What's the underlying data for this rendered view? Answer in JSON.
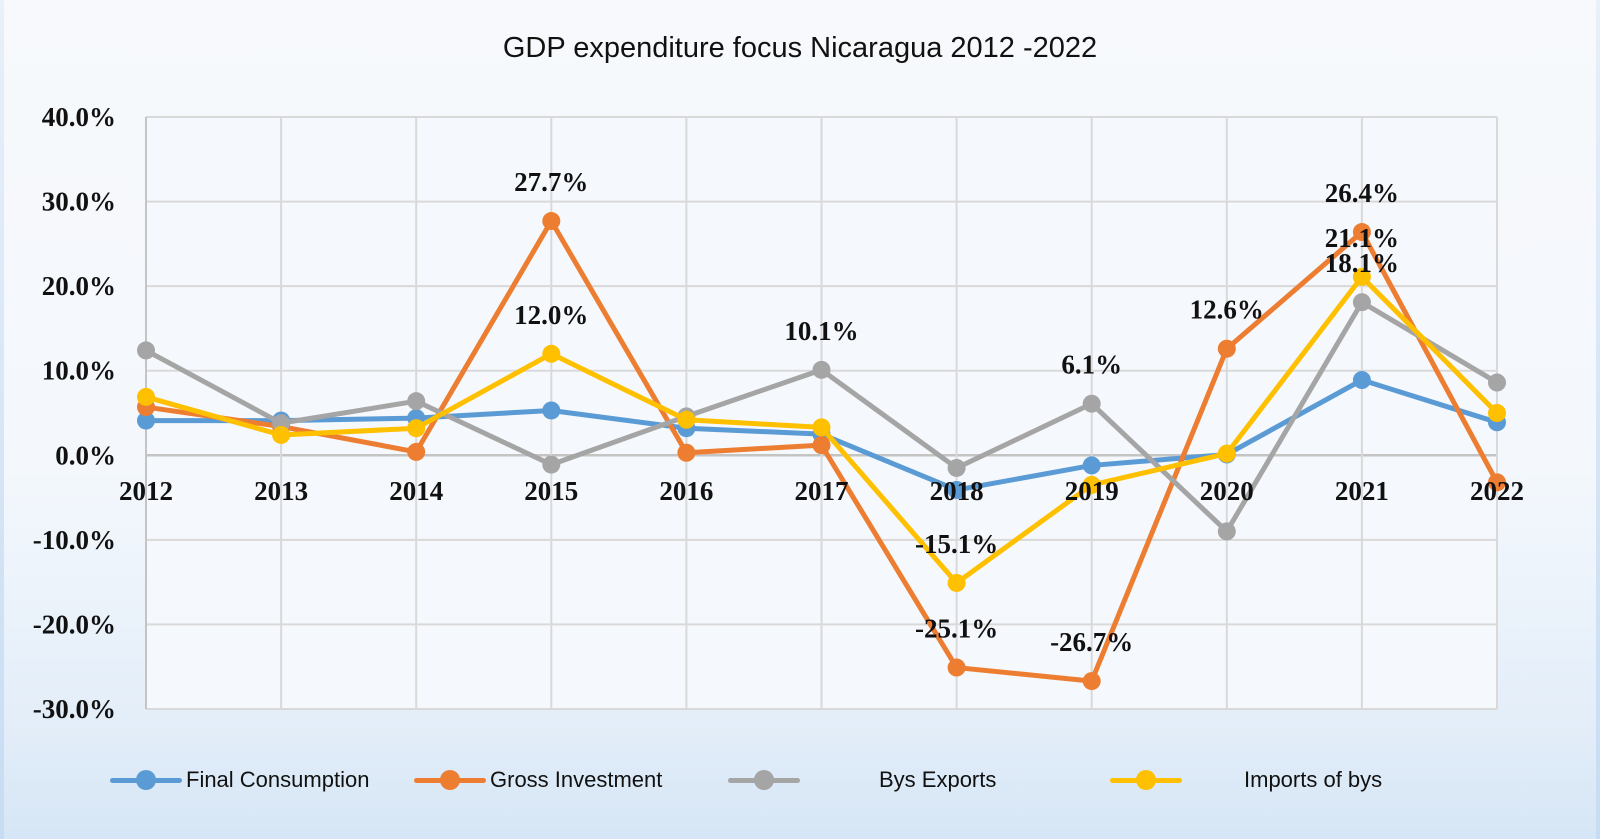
{
  "chart_data": {
    "type": "line",
    "title": "GDP expenditure focus Nicaragua 2012 -2022",
    "xlabel": "",
    "ylabel": "",
    "ylim": [
      -30,
      40
    ],
    "yticks": [
      "40.0%",
      "30.0%",
      "20.0%",
      "10.0%",
      "0.0%",
      "-10.0%",
      "-20.0%",
      "-30.0%"
    ],
    "ytick_values": [
      40,
      30,
      20,
      10,
      0,
      -10,
      -20,
      -30
    ],
    "grid": true,
    "legend_position": "bottom",
    "categories": [
      "2012",
      "2013",
      "2014",
      "2015",
      "2016",
      "2017",
      "2018",
      "2019",
      "2020",
      "2021",
      "2022"
    ],
    "series": [
      {
        "name": "Final Consumption",
        "color": "#5b9bd5",
        "values": [
          4.1,
          4.1,
          4.4,
          5.3,
          3.2,
          2.5,
          -4.1,
          -1.2,
          0.1,
          8.9,
          3.9
        ]
      },
      {
        "name": "Gross Investment",
        "color": "#ed7d31",
        "values": [
          5.7,
          3.4,
          0.4,
          27.7,
          0.3,
          1.2,
          -25.1,
          -26.7,
          12.6,
          26.4,
          -3.2
        ]
      },
      {
        "name": "Bys Exports",
        "color": "#a5a5a5",
        "values": [
          12.4,
          3.8,
          6.4,
          -1.1,
          4.6,
          10.1,
          -1.5,
          6.1,
          -9.0,
          18.1,
          8.6
        ]
      },
      {
        "name": "Imports of bys",
        "color": "#ffc000",
        "values": [
          6.9,
          2.4,
          3.2,
          12.0,
          4.2,
          3.3,
          -15.1,
          -3.5,
          0.2,
          21.1,
          5.0
        ]
      }
    ],
    "annotations": [
      {
        "series": "Gross Investment",
        "category": "2015",
        "text": "27.7%"
      },
      {
        "series": "Imports of bys",
        "category": "2015",
        "text": "12.0%"
      },
      {
        "series": "Bys Exports",
        "category": "2017",
        "text": "10.1%"
      },
      {
        "series": "Imports of bys",
        "category": "2018",
        "text": "-15.1%"
      },
      {
        "series": "Gross Investment",
        "category": "2018",
        "text": "-25.1%"
      },
      {
        "series": "Bys Exports",
        "category": "2019",
        "text": "6.1%"
      },
      {
        "series": "Gross Investment",
        "category": "2019",
        "text": "-26.7%"
      },
      {
        "series": "Gross Investment",
        "category": "2020",
        "text": "12.6%"
      },
      {
        "series": "Gross Investment",
        "category": "2021",
        "text": "26.4%"
      },
      {
        "series": "Imports of bys",
        "category": "2021",
        "text": "21.1%"
      },
      {
        "series": "Bys Exports",
        "category": "2021",
        "text": "18.1%"
      }
    ]
  }
}
